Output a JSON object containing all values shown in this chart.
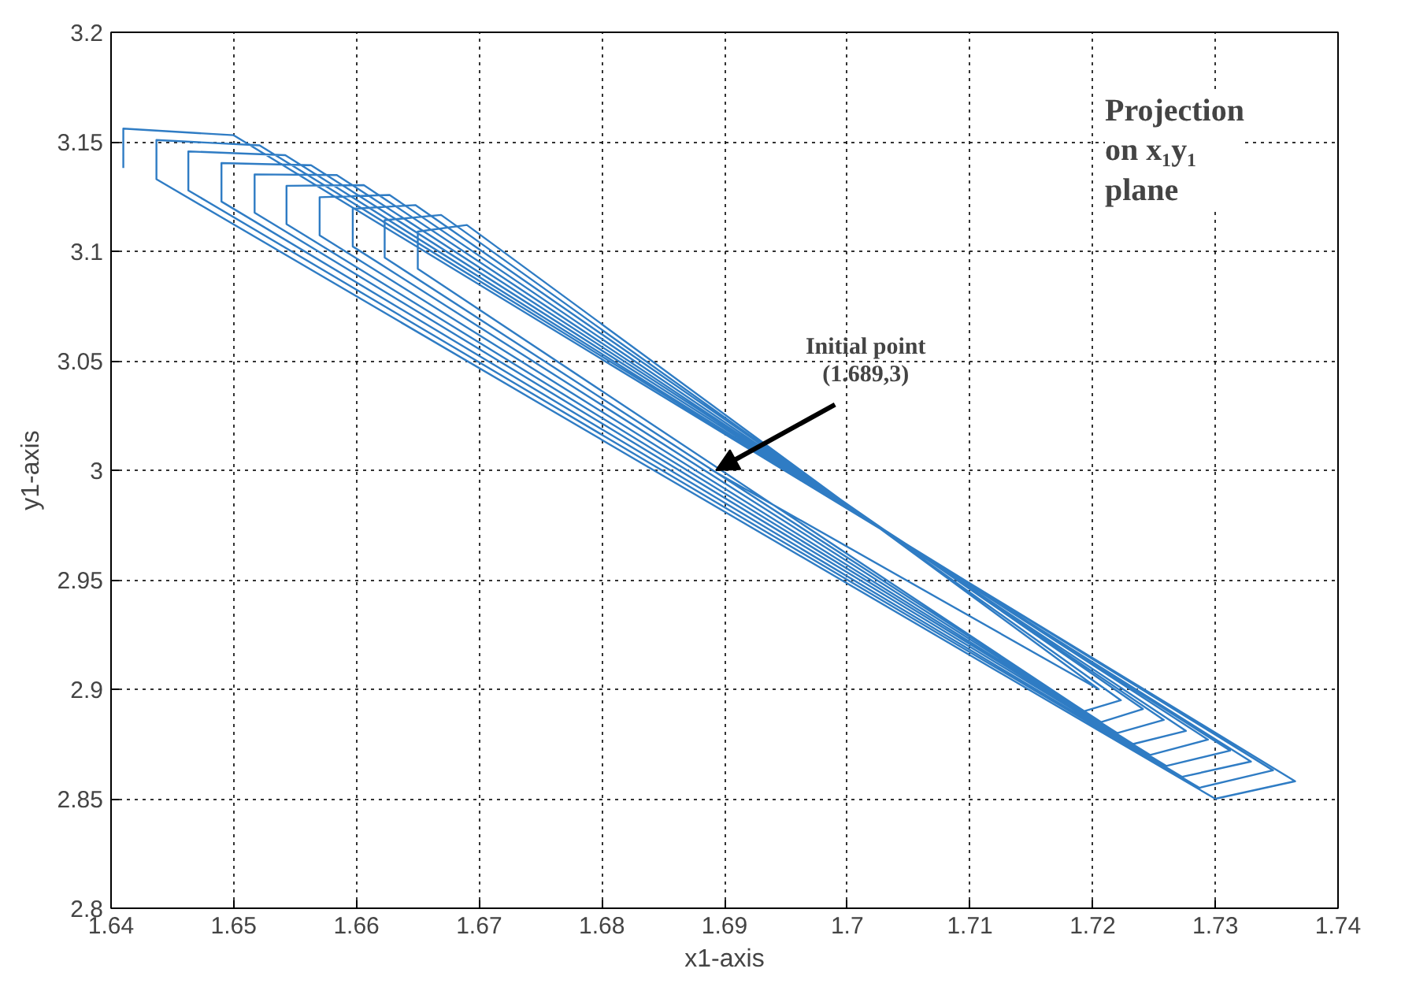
{
  "chart_data": {
    "type": "line",
    "xlabel": "x1-axis",
    "ylabel": "y1-axis",
    "x": [
      1.689,
      1.7205,
      1.669,
      1.665,
      1.665,
      1.7193,
      1.7223,
      1.6669,
      1.6623,
      1.6623,
      1.7207,
      1.7241,
      1.6648,
      1.6597,
      1.6597,
      1.722,
      1.7258,
      1.6627,
      1.657,
      1.657,
      1.7233,
      1.7276,
      1.6606,
      1.6543,
      1.6543,
      1.7247,
      1.7294,
      1.6584,
      1.6517,
      1.6517,
      1.726,
      1.7312,
      1.6563,
      1.649,
      1.649,
      1.7273,
      1.7329,
      1.6542,
      1.6463,
      1.6463,
      1.7287,
      1.7347,
      1.6521,
      1.6437,
      1.6437,
      1.73,
      1.7365,
      1.65,
      1.641,
      1.641
    ],
    "series": [
      {
        "color": "#2f7cc4",
        "values": [
          3.0,
          2.9,
          3.112,
          3.109,
          3.092,
          2.89,
          2.895,
          3.1166,
          3.1142,
          3.0971,
          2.885,
          2.891,
          3.1211,
          3.1194,
          3.1022,
          2.88,
          2.886,
          3.1257,
          3.1247,
          3.1073,
          2.875,
          2.881,
          3.1302,
          3.1299,
          3.1124,
          2.87,
          2.877,
          3.1348,
          3.1351,
          3.1176,
          2.865,
          2.872,
          3.1393,
          3.1403,
          3.1227,
          2.86,
          2.867,
          3.1439,
          3.1456,
          3.1278,
          2.855,
          2.863,
          3.1484,
          3.1508,
          3.1329,
          2.85,
          2.858,
          3.153,
          3.156,
          3.138
        ]
      }
    ],
    "xlim": [
      1.64,
      1.74
    ],
    "xticks": [
      1.64,
      1.65,
      1.66,
      1.67,
      1.68,
      1.69,
      {
        "value": 1.7,
        "label": "1.7"
      },
      1.71,
      1.72,
      1.73,
      1.74
    ],
    "ylim": [
      2.8,
      3.2
    ],
    "yticks": [
      2.8,
      2.85,
      {
        "value": 2.9,
        "label": "2.9"
      },
      2.95,
      {
        "value": 3.0,
        "label": "3"
      },
      3.05,
      {
        "value": 3.1,
        "label": "3.1"
      },
      3.15,
      {
        "value": 3.2,
        "label": "3.2"
      }
    ],
    "grid": true,
    "marker": "none",
    "line_style": "solid",
    "annotations": [
      "Projection\non x₁y₁\nplane",
      {
        "text": "Initial point\n(1.689,3)",
        "x": 1.689,
        "y": 3.0
      }
    ]
  }
}
